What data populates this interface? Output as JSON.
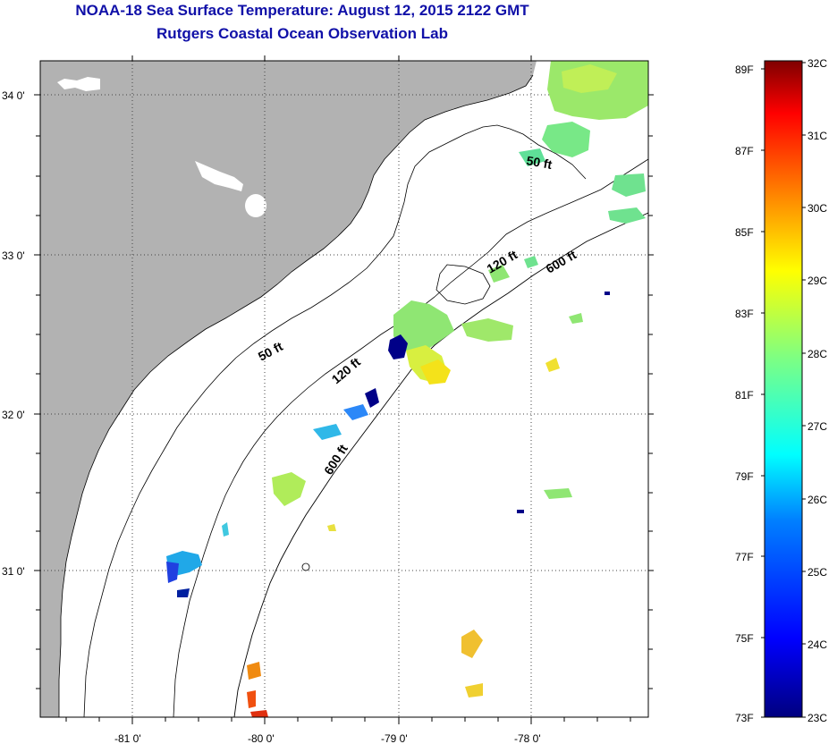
{
  "header": {
    "title": "NOAA-18 Sea Surface Temperature:  August 12, 2015 2122 GMT",
    "subtitle": "Rutgers Coastal Ocean Observation Lab"
  },
  "axes": {
    "lat_labels": [
      "34 0'",
      "33 0'",
      "32 0'",
      "31 0'"
    ],
    "lon_labels": [
      "-81 0'",
      "-80 0'",
      "-79 0'",
      "-78 0'"
    ]
  },
  "contours": {
    "labels": [
      "50 ft",
      "50 ft",
      "120 ft",
      "120 ft",
      "600 ft",
      "600 ft"
    ]
  },
  "colorbar": {
    "fahrenheit": [
      "89F",
      "87F",
      "85F",
      "83F",
      "81F",
      "79F",
      "77F",
      "75F",
      "73F"
    ],
    "celsius": [
      "32C",
      "31C",
      "30C",
      "29C",
      "28C",
      "27C",
      "26C",
      "25C",
      "24C",
      "23C"
    ],
    "colors": [
      "#00007f",
      "#0000ff",
      "#0080ff",
      "#00ffff",
      "#80ff80",
      "#ffff00",
      "#ff8000",
      "#ff0000",
      "#7f0000"
    ]
  },
  "colors": {
    "land": "#b2b2b2",
    "title": "#1010a8"
  }
}
